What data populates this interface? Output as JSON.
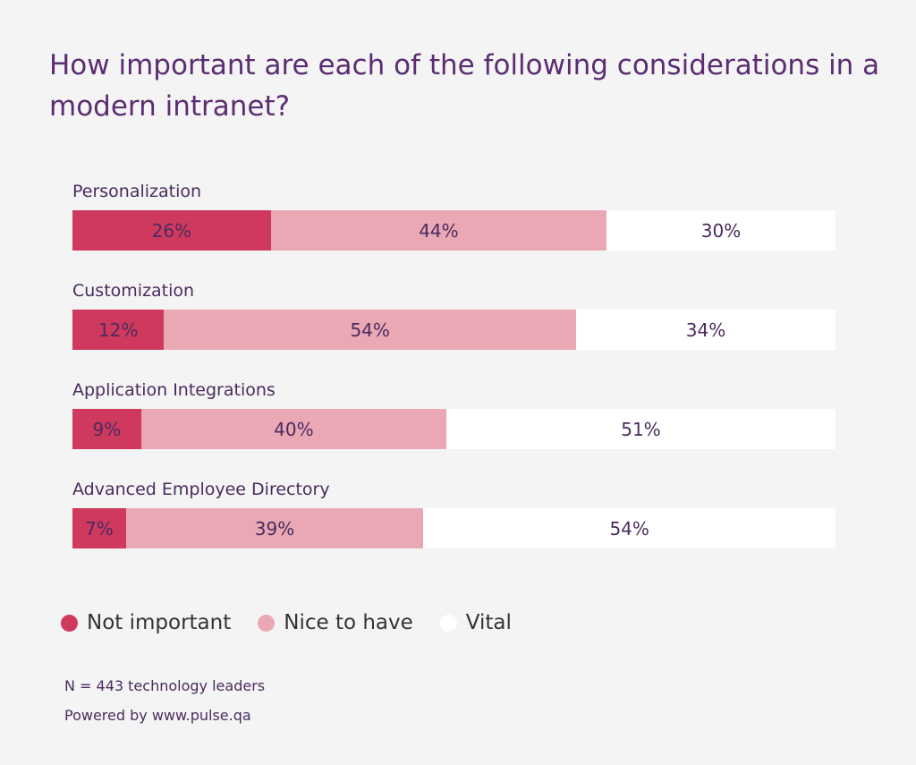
{
  "chart_data": {
    "type": "bar",
    "orientation": "horizontal",
    "stacked": true,
    "title": "How important are each of the following considerations in a modern intranet?",
    "categories": [
      "Personalization",
      "Customization",
      "Application Integrations",
      "Advanced Employee Directory"
    ],
    "series": [
      {
        "name": "Not important",
        "color": "#d0395e",
        "values": [
          26,
          12,
          9,
          7
        ]
      },
      {
        "name": "Nice to have",
        "color": "#eaa8b5",
        "values": [
          44,
          54,
          40,
          39
        ]
      },
      {
        "name": "Vital",
        "color": "#ffffff",
        "values": [
          30,
          34,
          51,
          54
        ]
      }
    ],
    "value_suffix": "%",
    "xlim": [
      0,
      100
    ],
    "legend_position": "bottom-left",
    "grid": false
  },
  "footer": {
    "sample": "N = 443 technology leaders",
    "source": "Powered by www.pulse.qa"
  }
}
